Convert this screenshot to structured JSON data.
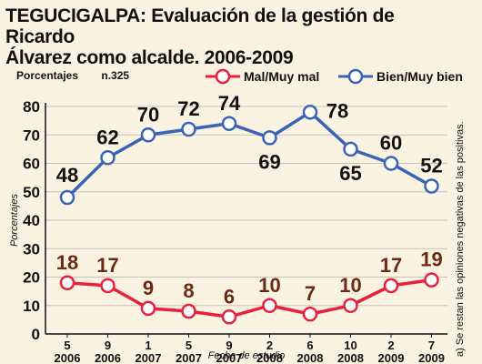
{
  "title_line1": "TEGUCIGALPA:  Evaluación de la gestión de Ricardo",
  "title_line2": "Álvarez como alcalde. 2006-2009",
  "unit_label": "Porcentajes",
  "sample_label": "n.325",
  "side_note": "a) Se restan las opiniones negativas de las positivas.",
  "colors": {
    "bad": "#e8213b",
    "good": "#3a63b8",
    "bad_label": "#6b2a12",
    "grid": "#c6c3bd"
  },
  "chart_data": {
    "type": "line",
    "ylabel": "Porcentajes",
    "xlabel": "Fecha de estudio",
    "ylim": [
      0,
      80
    ],
    "yticks": [
      0,
      10,
      20,
      30,
      40,
      50,
      60,
      70,
      80
    ],
    "grid": true,
    "legend": "top",
    "categories": [
      {
        "top": "5",
        "bottom": "2006"
      },
      {
        "top": "9",
        "bottom": "2006"
      },
      {
        "top": "1",
        "bottom": "2007"
      },
      {
        "top": "5",
        "bottom": "2007"
      },
      {
        "top": "9",
        "bottom": "2007"
      },
      {
        "top": "2",
        "bottom": "2008"
      },
      {
        "top": "6",
        "bottom": "2008"
      },
      {
        "top": "10",
        "bottom": "2008"
      },
      {
        "top": "2",
        "bottom": "2009"
      },
      {
        "top": "7",
        "bottom": "2009"
      }
    ],
    "series": [
      {
        "name": "Mal/Muy mal",
        "values": [
          18,
          17,
          9,
          8,
          6,
          10,
          7,
          10,
          17,
          19
        ]
      },
      {
        "name": "Bien/Muy bien",
        "values": [
          48,
          62,
          70,
          72,
          74,
          69,
          78,
          65,
          60,
          52
        ]
      }
    ]
  }
}
